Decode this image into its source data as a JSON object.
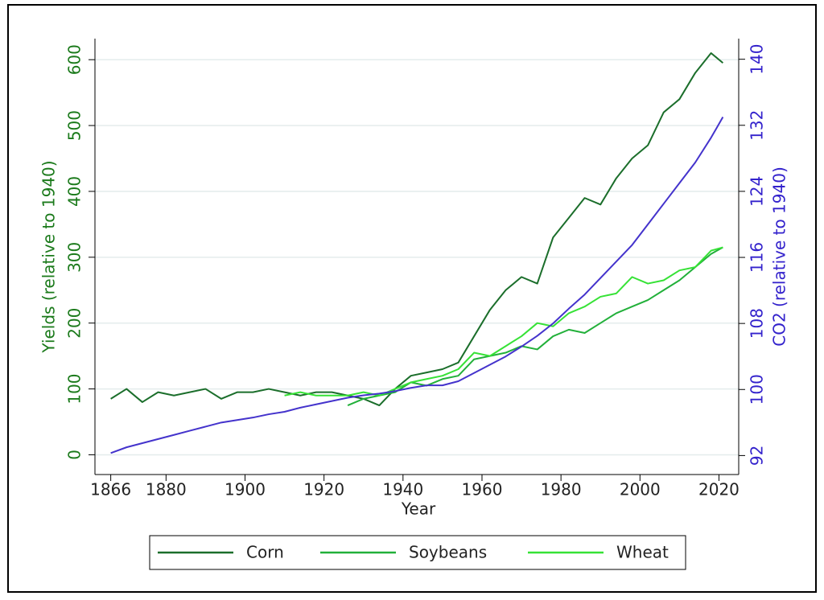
{
  "chart_data": {
    "type": "line",
    "xlabel": "Year",
    "ylabel": "Yields (relative to 1940)",
    "y2label": "CO2 (relative to 1940)",
    "x": [
      1866,
      1870,
      1874,
      1878,
      1882,
      1886,
      1890,
      1894,
      1898,
      1902,
      1906,
      1910,
      1914,
      1918,
      1922,
      1926,
      1930,
      1934,
      1938,
      1942,
      1946,
      1950,
      1954,
      1958,
      1962,
      1966,
      1970,
      1974,
      1978,
      1982,
      1986,
      1990,
      1994,
      1998,
      2002,
      2006,
      2010,
      2014,
      2018,
      2021
    ],
    "series": [
      {
        "name": "Corn",
        "color": "#1b6e2b",
        "values": [
          85,
          100,
          80,
          95,
          90,
          95,
          100,
          85,
          95,
          95,
          100,
          95,
          90,
          95,
          95,
          90,
          85,
          75,
          100,
          120,
          125,
          130,
          140,
          180,
          220,
          250,
          270,
          260,
          330,
          360,
          390,
          380,
          420,
          450,
          470,
          520,
          540,
          580,
          610,
          595
        ]
      },
      {
        "name": "Soybeans",
        "color": "#22b03a",
        "values": [
          null,
          null,
          null,
          null,
          null,
          null,
          null,
          null,
          null,
          null,
          null,
          null,
          null,
          null,
          null,
          75,
          85,
          90,
          95,
          110,
          105,
          115,
          120,
          145,
          150,
          155,
          165,
          160,
          180,
          190,
          185,
          200,
          215,
          225,
          235,
          250,
          265,
          285,
          305,
          315
        ]
      },
      {
        "name": "Wheat",
        "color": "#36e236",
        "values": [
          null,
          null,
          null,
          null,
          null,
          null,
          null,
          null,
          null,
          null,
          null,
          90,
          95,
          90,
          90,
          90,
          95,
          90,
          100,
          110,
          115,
          120,
          130,
          155,
          150,
          165,
          180,
          200,
          195,
          215,
          225,
          240,
          245,
          270,
          260,
          265,
          280,
          285,
          310,
          315
        ]
      },
      {
        "color": "#4433cc",
        "axis": "y2",
        "values": [
          92.3,
          93,
          93.5,
          94,
          94.5,
          95,
          95.5,
          96,
          96.3,
          96.6,
          97,
          97.3,
          97.8,
          98.2,
          98.6,
          99,
          99.3,
          99.5,
          99.8,
          100.2,
          100.5,
          100.5,
          101,
          102,
          103,
          104,
          105.2,
          106.5,
          108,
          109.8,
          111.5,
          113.5,
          115.5,
          117.5,
          120,
          122.5,
          125,
          127.5,
          130.5,
          133
        ]
      }
    ],
    "xlim": [
      1862,
      2025
    ],
    "xticks": [
      1866,
      1880,
      1900,
      1920,
      1940,
      1960,
      1980,
      2000,
      2020
    ],
    "ylim": [
      -30,
      632
    ],
    "yticks": [
      0,
      100,
      200,
      300,
      400,
      500,
      600
    ],
    "y2lim": [
      89.7,
      142.5
    ],
    "y2ticks": [
      92,
      100,
      108,
      116,
      124,
      132,
      140
    ],
    "grid": true,
    "legend": "bottom"
  }
}
